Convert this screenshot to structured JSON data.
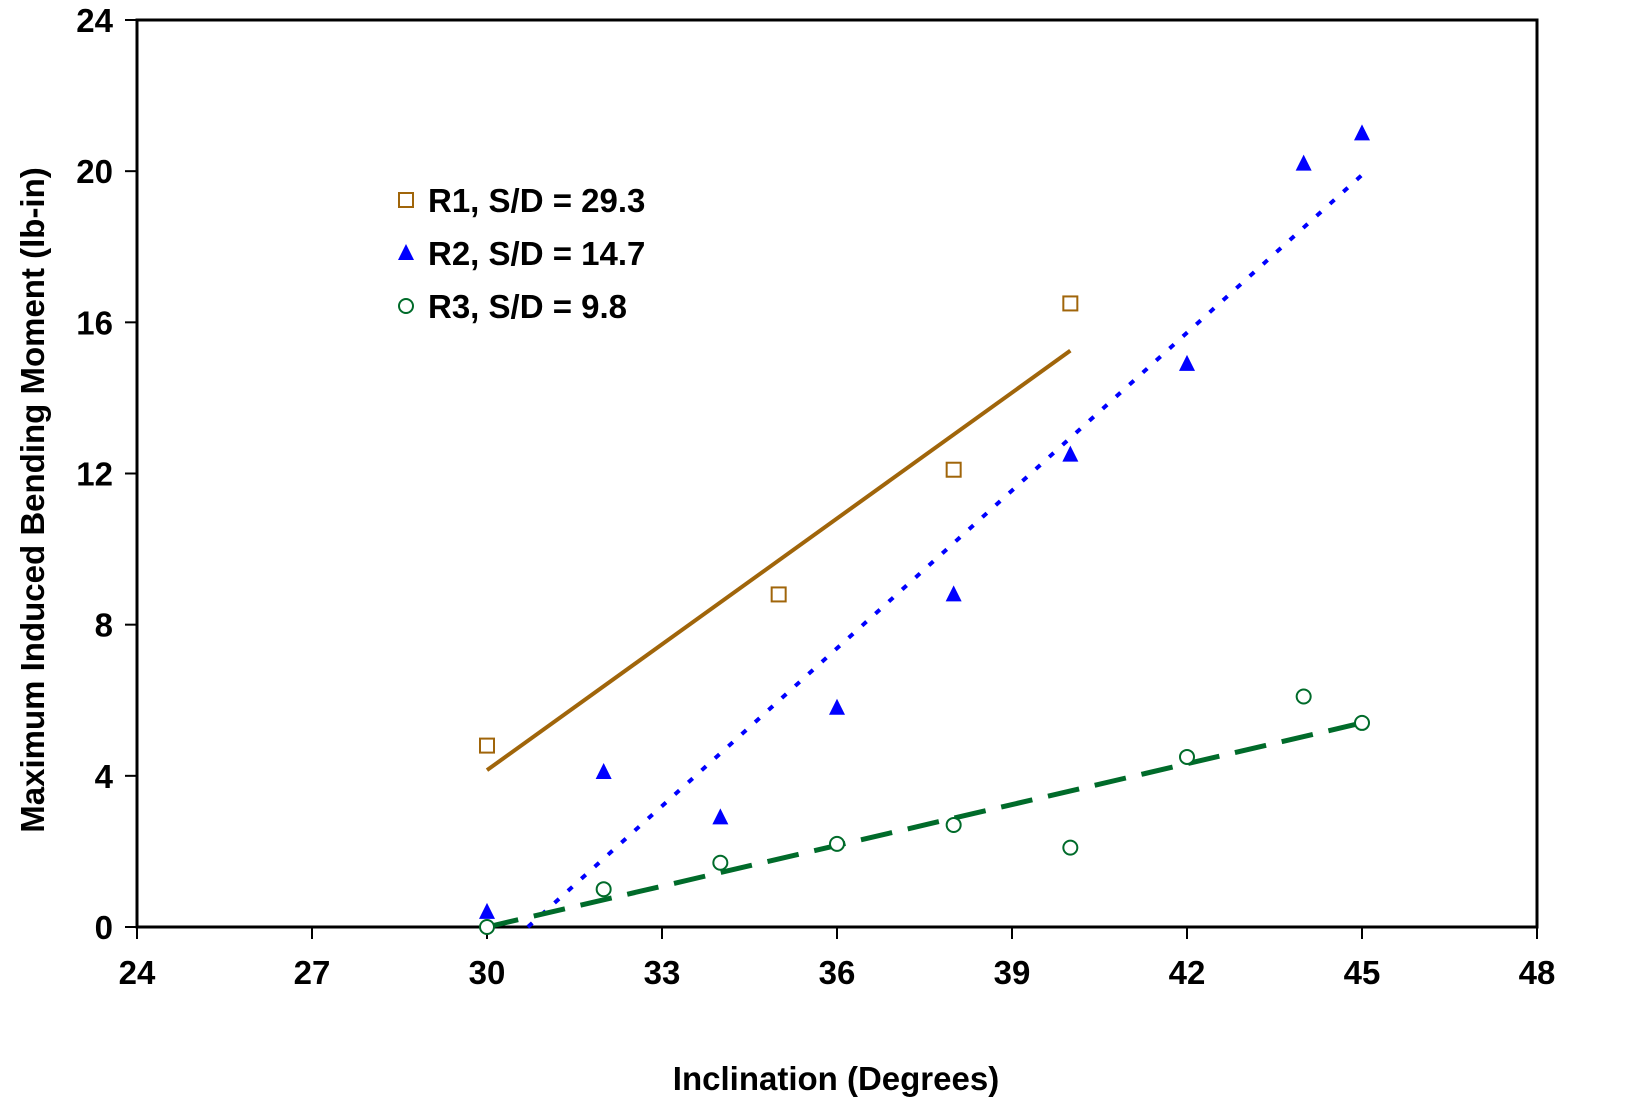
{
  "chart_data": {
    "type": "scatter",
    "title": "",
    "xlabel": "Inclination (Degrees)",
    "ylabel": "Maximum Induced Bending Moment (lb-in)",
    "xlim": [
      24,
      48
    ],
    "ylim": [
      0,
      24
    ],
    "x_ticks": [
      "24",
      "27",
      "30",
      "33",
      "36",
      "39",
      "42",
      "45",
      "48"
    ],
    "y_ticks": [
      "0",
      "4",
      "8",
      "12",
      "16",
      "20",
      "24"
    ],
    "grid": false,
    "legend_position": "top-left",
    "series": [
      {
        "name": "R1, S/D = 29.3",
        "marker": "open-square",
        "color": "#A0650A",
        "x": [
          30,
          35,
          38,
          40
        ],
        "y": [
          4.8,
          8.8,
          12.1,
          16.5
        ],
        "trendline": {
          "style": "solid",
          "x": [
            30,
            40
          ],
          "y": [
            4.15,
            15.25
          ]
        }
      },
      {
        "name": "R2, S/D = 14.7",
        "marker": "filled-triangle",
        "color": "#0000FF",
        "x": [
          30,
          32,
          34,
          36,
          38,
          40,
          42,
          44,
          45
        ],
        "y": [
          0.4,
          4.1,
          2.9,
          5.8,
          8.8,
          12.5,
          14.9,
          20.2,
          21.0
        ],
        "trendline": {
          "style": "dotted",
          "x": [
            30.7,
            45
          ],
          "y": [
            0.0,
            19.9
          ]
        }
      },
      {
        "name": "R3, S/D = 9.8",
        "marker": "open-circle",
        "color": "#006B2A",
        "x": [
          30,
          32,
          34,
          36,
          38,
          40,
          42,
          44,
          45
        ],
        "y": [
          0.0,
          1.0,
          1.7,
          2.2,
          2.7,
          2.1,
          4.5,
          6.1,
          5.4
        ],
        "trendline": {
          "style": "dashed",
          "x": [
            30,
            45
          ],
          "y": [
            0.0,
            5.4
          ]
        }
      }
    ]
  }
}
